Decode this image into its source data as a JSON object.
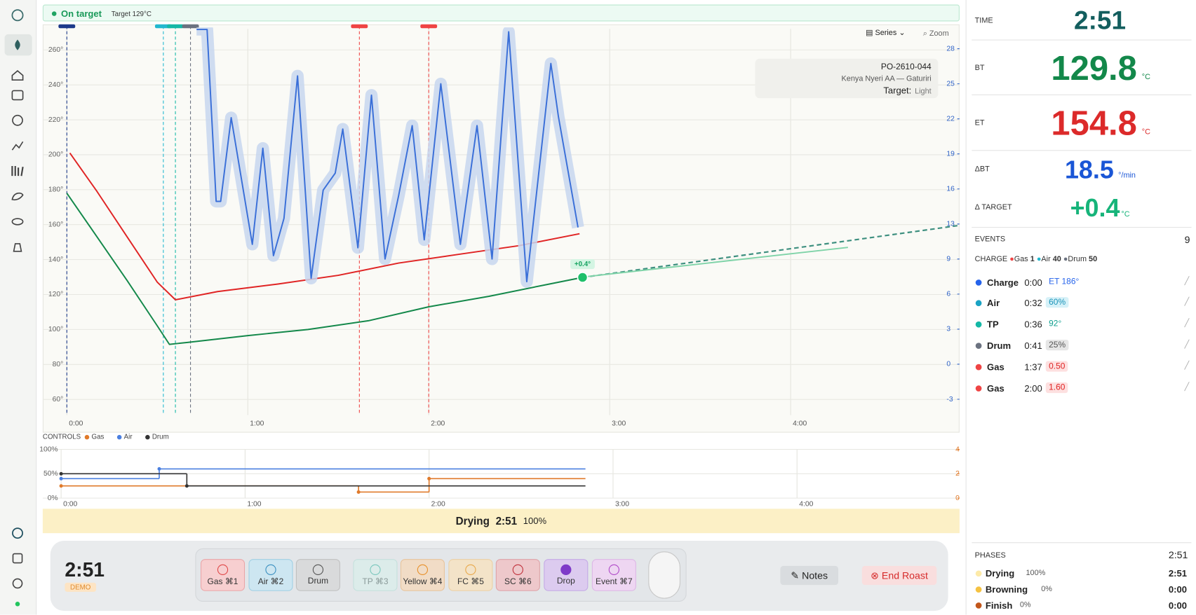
{
  "status": {
    "label": "On target",
    "target": "Target 129°C"
  },
  "chart_header": {
    "series_button": "Series",
    "zoom_button": "Zoom",
    "roast_id": "PO-2610-044",
    "coffee": "Kenya Nyeri AA — Gaturiri",
    "target_label": "Target:",
    "target": "Light"
  },
  "chart_data": [
    {
      "type": "line",
      "xlim": [
        -8,
        296
      ],
      "ylim": [
        51,
        272
      ],
      "y2lim": [
        -4.4,
        29.75
      ],
      "grid": true,
      "xticks": [
        {
          "value": 0,
          "label": "0:00"
        },
        {
          "value": 60,
          "label": "1:00"
        },
        {
          "value": 120,
          "label": "2:00"
        },
        {
          "value": 180,
          "label": "3:00"
        },
        {
          "value": 240,
          "label": "4:00"
        }
      ],
      "yticks": [
        {
          "value": 60,
          "label": "60°"
        },
        {
          "value": 80,
          "label": "80°"
        },
        {
          "value": 100,
          "label": "100°"
        },
        {
          "value": 120,
          "label": "120°"
        },
        {
          "value": 140,
          "label": "140°"
        },
        {
          "value": 160,
          "label": "160°"
        },
        {
          "value": 180,
          "label": "180°"
        },
        {
          "value": 200,
          "label": "200°"
        },
        {
          "value": 220,
          "label": "220°"
        },
        {
          "value": 240,
          "label": "240°"
        },
        {
          "value": 260,
          "label": "260°"
        }
      ],
      "y2ticks": [
        {
          "value": -3,
          "label": "-3"
        },
        {
          "value": 0.1,
          "label": "0"
        },
        {
          "value": 3.2,
          "label": "3"
        },
        {
          "value": 6.3,
          "label": "6"
        },
        {
          "value": 9.4,
          "label": "9"
        },
        {
          "value": 12.5,
          "label": "13"
        },
        {
          "value": 15.6,
          "label": "16"
        },
        {
          "value": 18.7,
          "label": "19"
        },
        {
          "value": 21.8,
          "label": "22"
        },
        {
          "value": 24.9,
          "label": "25"
        },
        {
          "value": 28,
          "label": "28"
        }
      ],
      "y2color": "#2f63c8",
      "series": [
        {
          "color": "#13884a",
          "x": [
            0,
            10,
            20,
            30,
            34,
            40,
            60,
            80,
            100,
            120,
            140,
            160,
            171
          ],
          "values": [
            178,
            153,
            128,
            102,
            91.5,
            92.6,
            96.5,
            100,
            105,
            113,
            119,
            126,
            129.8
          ]
        },
        {
          "color": "#e02424",
          "x": [
            1,
            10,
            20,
            30,
            36,
            50,
            70,
            90,
            110,
            130,
            150,
            170
          ],
          "values": [
            201,
            179,
            153,
            127,
            117,
            121.7,
            126,
            131,
            138,
            143,
            148,
            154.8
          ]
        },
        {
          "color": "#3a6fd8",
          "axis": "y2",
          "band": true,
          "x": [
            43,
            46.5,
            49.5,
            51,
            54.5,
            61.5,
            65,
            68.5,
            72,
            76.5,
            81,
            85,
            89,
            91.5,
            96.5,
            101,
            105.5,
            110,
            114.5,
            118.5,
            124,
            130.5,
            136,
            141,
            146.5,
            152.5,
            160.5,
            163,
            169.5
          ],
          "values": [
            29.7,
            29.7,
            14.5,
            14.5,
            21.9,
            10.7,
            19.2,
            9.7,
            13,
            25.6,
            7.7,
            15.5,
            17,
            20.9,
            10.4,
            23.9,
            9.4,
            15,
            21.2,
            11.1,
            24.9,
            10.7,
            21.2,
            9.4,
            29.5,
            7.4,
            26.7,
            22,
            12.2
          ]
        },
        {
          "color": "#3d8f7f",
          "dash": true,
          "x": [
            171,
            296
          ],
          "values": [
            129.8,
            159.6
          ]
        },
        {
          "color": "#7fd3a8",
          "x": [
            171,
            259
          ],
          "values": [
            130,
            147
          ]
        }
      ],
      "event_x": [
        0,
        32,
        36,
        41,
        97,
        120
      ],
      "event_colors": [
        "#1e3a8a",
        "#22b8cf",
        "#14b8a6",
        "#6b7280",
        "#ef4444",
        "#ef4444"
      ],
      "marker_label": "+0.4°"
    },
    {
      "type": "step",
      "title": "CONTROLS",
      "xlim": [
        -6,
        293
      ],
      "now": 171,
      "ylim": [
        0,
        100
      ],
      "y2lim": [
        0,
        4
      ],
      "grid": true,
      "y2color": "#e07a2a",
      "xticks": [
        {
          "value": 0,
          "label": "0:00"
        },
        {
          "value": 60,
          "label": "1:00"
        },
        {
          "value": 120,
          "label": "2:00"
        },
        {
          "value": 180,
          "label": "3:00"
        },
        {
          "value": 240,
          "label": "4:00"
        }
      ],
      "yticks": [
        {
          "value": 0,
          "label": "0%"
        },
        {
          "value": 50,
          "label": "50%"
        },
        {
          "value": 100,
          "label": "100%"
        }
      ],
      "y2ticks": [
        0,
        2,
        4
      ],
      "series": [
        {
          "name": "Gas",
          "color": "#e07a2a",
          "axis": "y2",
          "x": [
            0,
            97,
            120
          ],
          "values": [
            1,
            0.5,
            1.6
          ]
        },
        {
          "name": "Air",
          "color": "#4a7fe0",
          "x": [
            0,
            32
          ],
          "values": [
            40,
            60
          ]
        },
        {
          "name": "Drum",
          "color": "#333333",
          "x": [
            0,
            41
          ],
          "values": [
            50,
            25
          ]
        }
      ]
    }
  ],
  "phase_bar": {
    "phase": "Drying",
    "time": "2:51",
    "percent": "100%"
  },
  "control_bar": {
    "time": "2:51",
    "mode": "DEMO",
    "buttons": [
      {
        "label": "Gas",
        "shortcut": "⌘1"
      },
      {
        "label": "Air",
        "shortcut": "⌘2"
      },
      {
        "label": "Drum"
      },
      {
        "label": "TP",
        "shortcut": "⌘3"
      },
      {
        "label": "Yellow",
        "shortcut": "⌘4"
      },
      {
        "label": "FC",
        "shortcut": "⌘5"
      },
      {
        "label": "SC",
        "shortcut": "⌘6"
      },
      {
        "label": "Drop"
      },
      {
        "label": "Event",
        "shortcut": "⌘7"
      }
    ],
    "notes": "Notes",
    "end": "End Roast"
  },
  "readings": [
    {
      "label": "TIME",
      "value": "2:51"
    },
    {
      "label": "BT",
      "value": "129.8",
      "unit": "°C"
    },
    {
      "label": "ET",
      "value": "154.8",
      "unit": "°C"
    },
    {
      "label": "ΔBT",
      "value": "18.5",
      "unit": "°/min"
    },
    {
      "label": "Δ TARGET",
      "value": "+0.4",
      "unit": "°C"
    }
  ],
  "events": {
    "title": "EVENTS",
    "count": "9",
    "charge_label": "CHARGE",
    "charge_settings": [
      {
        "name": "Gas",
        "value": "1"
      },
      {
        "name": "Air",
        "value": "40"
      },
      {
        "name": "Drum",
        "value": "50"
      }
    ],
    "rows": [
      {
        "name": "Charge",
        "time": "0:00",
        "detail": "ET 186°"
      },
      {
        "name": "Air",
        "time": "0:32",
        "detail": "60%"
      },
      {
        "name": "TP",
        "time": "0:36",
        "detail": "92°"
      },
      {
        "name": "Drum",
        "time": "0:41",
        "detail": "25%"
      },
      {
        "name": "Gas",
        "time": "1:37",
        "detail": "0.50"
      },
      {
        "name": "Gas",
        "time": "2:00",
        "detail": "1.60"
      }
    ]
  },
  "phases": {
    "title": "PHASES",
    "time": "2:51",
    "rows": [
      {
        "name": "Drying",
        "percent": "100%",
        "time": "2:51"
      },
      {
        "name": "Browning",
        "percent": "0%",
        "time": "0:00"
      },
      {
        "name": "Finish",
        "percent": "0%",
        "time": "0:00"
      }
    ]
  }
}
